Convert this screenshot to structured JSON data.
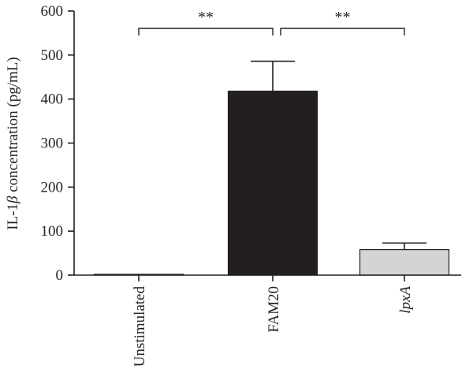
{
  "chart_data": {
    "type": "bar",
    "categories": [
      "Unstimulated",
      "FAM20",
      "lpxA"
    ],
    "category_styles": [
      "normal",
      "normal",
      "italic"
    ],
    "values": [
      0,
      418,
      58
    ],
    "errors": [
      0,
      68,
      15
    ],
    "bar_colors": [
      "#ffffff",
      "#231f20",
      "#d4d4d4"
    ],
    "ylabel_parts": [
      "IL-1",
      "β",
      " concentration (pg/mL)"
    ],
    "xlabel": "",
    "title": "",
    "ylim": [
      0,
      600
    ],
    "yticks": [
      0,
      100,
      200,
      300,
      400,
      500,
      600
    ],
    "grid": false,
    "significance": [
      {
        "from": 0,
        "to": 1,
        "label": "**"
      },
      {
        "from": 1,
        "to": 2,
        "label": "**"
      }
    ]
  }
}
